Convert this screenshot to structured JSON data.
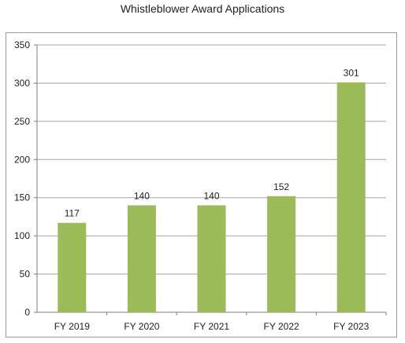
{
  "chart_data": {
    "type": "bar",
    "title": "Whistleblower Award Applications",
    "categories": [
      "FY 2019",
      "FY 2020",
      "FY 2021",
      "FY 2022",
      "FY 2023"
    ],
    "values": [
      117,
      140,
      140,
      152,
      301
    ],
    "xlabel": "",
    "ylabel": "",
    "ylim": [
      0,
      350
    ],
    "yticks": [
      0,
      50,
      100,
      150,
      200,
      250,
      300,
      350
    ],
    "grid": true,
    "legend": "none",
    "bar_color": "#9bbb59",
    "grid_color": "#a6a6a6"
  }
}
